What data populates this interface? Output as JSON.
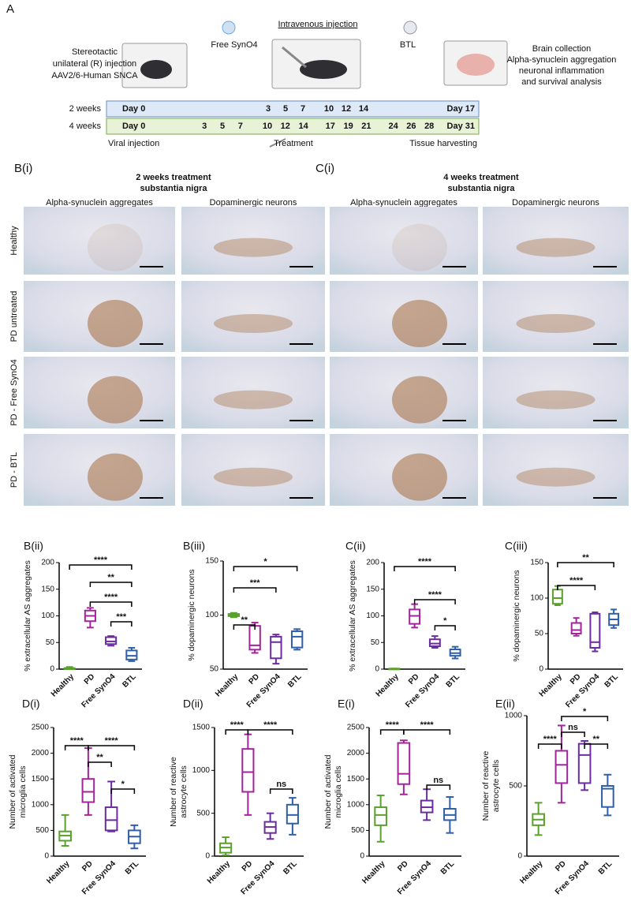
{
  "figure_a": {
    "panel": "A",
    "left_text": [
      "Stereotactic",
      "unilateral (R) injection",
      "AAV2/6-Human SNCA"
    ],
    "free_label": "Free SynO4",
    "injection_label": "Intravenous injection",
    "btl_label": "BTL",
    "right_text": [
      "Brain collection",
      "Alpha-synuclein aggregation",
      "neuronal inflammation",
      "and survival analysis"
    ],
    "rows": [
      {
        "label": "2 weeks",
        "start": "Day 0",
        "days": [
          3,
          5,
          7,
          10,
          12,
          14
        ],
        "end": "Day 17"
      },
      {
        "label": "4 weeks",
        "start": "Day 0",
        "days": [
          3,
          5,
          7,
          10,
          12,
          14,
          17,
          19,
          21,
          24,
          26,
          28
        ],
        "end": "Day 31"
      }
    ],
    "footer": [
      "Viral injection",
      "Treatment",
      "Tissue harvesting"
    ]
  },
  "histology": {
    "panels": [
      {
        "label": "B(i)",
        "title": [
          "2 weeks treatment",
          "substantia nigra"
        ],
        "columns": [
          "Alpha-synuclein aggregates",
          "Dopaminergic neurons"
        ]
      },
      {
        "label": "C(i)",
        "title": [
          "4 weeks treatment",
          "substantia nigra"
        ],
        "columns": [
          "Alpha-synuclein aggregates",
          "Dopaminergic neurons"
        ]
      }
    ],
    "rows": [
      "Healthy",
      "PD untreated",
      "PD - Free SynO4",
      "PD - BTL"
    ]
  },
  "chart_data": [
    {
      "type": "box",
      "title": "B(ii)",
      "ylabel": [
        "% extracellular AS aggregates"
      ],
      "categories": [
        "Healthy",
        "PD",
        "Free SynO4",
        "BTL"
      ],
      "colors": [
        "#5aa02c",
        "#a3239b",
        "#6a2c9e",
        "#2f5fa8"
      ],
      "values": [
        [
          0,
          0,
          1,
          2,
          4
        ],
        [
          78,
          90,
          100,
          110,
          115
        ],
        [
          44,
          47,
          52,
          60,
          62
        ],
        [
          15,
          18,
          25,
          35,
          40
        ]
      ],
      "ylim": [
        0,
        200
      ],
      "yticks": [
        0,
        50,
        100,
        150,
        200
      ],
      "annotations": [
        "****",
        "**",
        "****",
        "***"
      ]
    },
    {
      "type": "box",
      "title": "B(iii)",
      "ylabel": [
        "% dopaminergic neurons"
      ],
      "categories": [
        "Healthy",
        "PD",
        "Free SynO4",
        "BTL"
      ],
      "colors": [
        "#5aa02c",
        "#a3239b",
        "#6a2c9e",
        "#2f5fa8"
      ],
      "values": [
        [
          98,
          99,
          100,
          101,
          102
        ],
        [
          65,
          68,
          72,
          90,
          93
        ],
        [
          55,
          60,
          75,
          80,
          82
        ],
        [
          68,
          70,
          80,
          85,
          87
        ]
      ],
      "ylim": [
        50,
        150
      ],
      "yticks": [
        50,
        100,
        150
      ],
      "annotations": [
        "**",
        "***",
        "*"
      ]
    },
    {
      "type": "box",
      "title": "C(ii)",
      "ylabel": [
        "% extracellular AS aggregates"
      ],
      "categories": [
        "Healthy",
        "PD",
        "Free SynO4",
        "BTL"
      ],
      "colors": [
        "#5aa02c",
        "#a3239b",
        "#6a2c9e",
        "#2f5fa8"
      ],
      "values": [
        [
          0,
          0,
          0,
          1,
          1
        ],
        [
          78,
          85,
          100,
          112,
          122
        ],
        [
          40,
          43,
          48,
          56,
          62
        ],
        [
          20,
          25,
          30,
          37,
          42
        ]
      ],
      "ylim": [
        0,
        200
      ],
      "yticks": [
        0,
        50,
        100,
        150,
        200
      ],
      "annotations": [
        "****",
        "****",
        "*"
      ]
    },
    {
      "type": "box",
      "title": "C(iii)",
      "ylabel": [
        "% dopaminergic neurons"
      ],
      "categories": [
        "Healthy",
        "PD",
        "Free SynO4",
        "BTL"
      ],
      "colors": [
        "#5aa02c",
        "#a3239b",
        "#6a2c9e",
        "#2f5fa8"
      ],
      "values": [
        [
          90,
          92,
          100,
          112,
          117
        ],
        [
          47,
          50,
          55,
          65,
          72
        ],
        [
          25,
          30,
          38,
          78,
          80
        ],
        [
          58,
          62,
          70,
          78,
          84
        ]
      ],
      "ylim": [
        0,
        150
      ],
      "yticks": [
        0,
        50,
        100,
        150
      ],
      "annotations": [
        "**",
        "****"
      ]
    },
    {
      "type": "box",
      "title": "D(i)",
      "ylabel": [
        "Number of activated",
        "microglia cells"
      ],
      "categories": [
        "Healthy",
        "PD",
        "Free SynO4",
        "BTL"
      ],
      "colors": [
        "#5aa02c",
        "#a3239b",
        "#6a2c9e",
        "#2f5fa8"
      ],
      "values": [
        [
          200,
          300,
          400,
          480,
          800
        ],
        [
          800,
          1050,
          1250,
          1500,
          2100
        ],
        [
          480,
          500,
          700,
          950,
          1450
        ],
        [
          150,
          250,
          380,
          500,
          600
        ]
      ],
      "ylim": [
        0,
        2500
      ],
      "yticks": [
        0,
        500,
        1000,
        1500,
        2000,
        2500
      ],
      "annotations": [
        "****",
        "****",
        "**",
        "*"
      ]
    },
    {
      "type": "box",
      "title": "D(ii)",
      "ylabel": [
        "Number of reactive",
        "astrocyte cells"
      ],
      "categories": [
        "Healthy",
        "PD",
        "Free SynO4",
        "BTL"
      ],
      "colors": [
        "#5aa02c",
        "#a3239b",
        "#6a2c9e",
        "#2f5fa8"
      ],
      "values": [
        [
          10,
          40,
          100,
          150,
          220
        ],
        [
          480,
          750,
          980,
          1250,
          1420
        ],
        [
          200,
          270,
          340,
          400,
          500
        ],
        [
          250,
          380,
          480,
          600,
          680
        ]
      ],
      "ylim": [
        0,
        1500
      ],
      "yticks": [
        0,
        500,
        1000,
        1500
      ],
      "annotations": [
        "****",
        "****",
        "ns"
      ]
    },
    {
      "type": "box",
      "title": "E(i)",
      "ylabel": [
        "Number of activated",
        "microglia cells"
      ],
      "categories": [
        "Healthy",
        "PD",
        "Free SynO4",
        "BTL"
      ],
      "colors": [
        "#5aa02c",
        "#a3239b",
        "#6a2c9e",
        "#2f5fa8"
      ],
      "values": [
        [
          280,
          600,
          800,
          950,
          1180
        ],
        [
          1200,
          1400,
          1600,
          2200,
          2250
        ],
        [
          700,
          850,
          950,
          1080,
          1300
        ],
        [
          450,
          700,
          800,
          920,
          1150
        ]
      ],
      "ylim": [
        0,
        2500
      ],
      "yticks": [
        0,
        500,
        1000,
        1500,
        2000,
        2500
      ],
      "annotations": [
        "****",
        "****",
        "ns"
      ]
    },
    {
      "type": "box",
      "title": "E(ii)",
      "ylabel": [
        "Number of reactive",
        "astrocyte cells"
      ],
      "categories": [
        "Healthy",
        "PD",
        "Free SynO4",
        "BTL"
      ],
      "colors": [
        "#5aa02c",
        "#a3239b",
        "#6a2c9e",
        "#2f5fa8"
      ],
      "values": [
        [
          150,
          220,
          260,
          300,
          380
        ],
        [
          380,
          520,
          650,
          750,
          930
        ],
        [
          470,
          520,
          720,
          800,
          820
        ],
        [
          290,
          350,
          480,
          500,
          580
        ]
      ],
      "ylim": [
        0,
        1000
      ],
      "yticks": [
        0,
        500,
        1000
      ],
      "annotations": [
        "****",
        "ns",
        "*",
        "**"
      ]
    }
  ]
}
